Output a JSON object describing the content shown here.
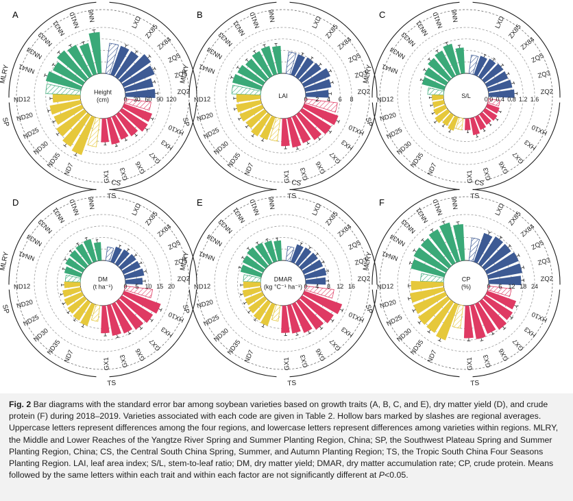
{
  "panels": [
    {
      "letter": "A",
      "center": [
        "Height",
        "(cm)"
      ],
      "ticks": [
        "0",
        "30",
        "60",
        "90",
        "120"
      ],
      "max": 120,
      "values": {
        "MLRY": [
          95,
          88,
          97,
          92,
          84,
          108
        ],
        "CS": [
          80,
          80,
          95,
          88,
          75,
          78
        ],
        "TS": [
          78,
          80,
          70,
          65,
          70,
          62
        ],
        "SP": [
          105,
          98,
          90,
          80,
          82,
          72
        ]
      },
      "avg": {
        "MLRY": 90,
        "CS": 80,
        "TS": 68,
        "SP": 75
      }
    },
    {
      "letter": "B",
      "center": [
        "LAI"
      ],
      "ticks": [
        "0",
        "2",
        "4",
        "6",
        "8"
      ],
      "max": 8,
      "values": {
        "MLRY": [
          5.2,
          5.0,
          4.6,
          4.9,
          5.1,
          4.8
        ],
        "CS": [
          3.8,
          4.0,
          4.2,
          5.0,
          4.6,
          4.0
        ],
        "TS": [
          6.3,
          6.0,
          5.5,
          5.0,
          5.2,
          4.8
        ],
        "SP": [
          4.2,
          4.4,
          4.0,
          4.3,
          4.4,
          4.2
        ]
      },
      "avg": {
        "MLRY": 5.0,
        "CS": 3.8,
        "TS": 5.6,
        "SP": 4.0
      }
    },
    {
      "letter": "C",
      "center": [
        "S/L"
      ],
      "ticks": [
        "0.0",
        "0.4",
        "0.8",
        "1.2",
        "1.6"
      ],
      "max": 1.6,
      "values": {
        "MLRY": [
          0.8,
          0.85,
          0.95,
          1.0,
          1.1,
          0.9
        ],
        "CS": [
          0.7,
          0.75,
          0.8,
          0.8,
          0.85,
          0.9
        ],
        "TS": [
          0.45,
          0.5,
          0.45,
          0.5,
          0.6,
          0.4
        ],
        "SP": [
          0.5,
          0.45,
          0.55,
          0.45,
          0.4,
          0.4
        ]
      },
      "avg": {
        "MLRY": 0.55,
        "CS": 0.65,
        "TS": 0.4,
        "SP": 0.4
      }
    },
    {
      "letter": "D",
      "center": [
        "DM",
        "(t ha⁻¹)"
      ],
      "ticks": [
        "0",
        "5",
        "10",
        "15",
        "20"
      ],
      "max": 20,
      "values": {
        "MLRY": [
          7.5,
          8.5,
          9.0,
          9.5,
          10.0,
          8.0
        ],
        "CS": [
          7.0,
          7.5,
          8.0,
          8.0,
          8.5,
          7.5
        ],
        "TS": [
          17,
          16,
          15,
          14,
          13.5,
          12
        ],
        "SP": [
          10,
          9.5,
          9.0,
          8.5,
          8.0,
          7.0
        ]
      },
      "avg": {
        "MLRY": 6.5,
        "CS": 6.0,
        "TS": 12.0,
        "SP": 7.0
      }
    },
    {
      "letter": "E",
      "center": [
        "DMAR",
        "(kg °C⁻¹ ha⁻¹)"
      ],
      "ticks": [
        "0",
        "4",
        "8",
        "12",
        "16"
      ],
      "max": 16,
      "values": {
        "MLRY": [
          7.5,
          8.0,
          8.5,
          8.0,
          7.5,
          7.0
        ],
        "CS": [
          6.5,
          6.8,
          7.0,
          7.2,
          7.5,
          7.0
        ],
        "TS": [
          14,
          13,
          12,
          11,
          10,
          9.5
        ],
        "SP": [
          8.0,
          7.5,
          7.0,
          6.5,
          6.5,
          6.0
        ]
      },
      "avg": {
        "MLRY": 6.0,
        "CS": 5.0,
        "TS": 10.0,
        "SP": 5.5
      }
    },
    {
      "letter": "F",
      "center": [
        "CP",
        "(%)"
      ],
      "ticks": [
        "0",
        "6",
        "12",
        "18",
        "24"
      ],
      "max": 24,
      "values": {
        "MLRY": [
          18,
          19,
          19,
          20,
          21,
          19
        ],
        "CS": [
          16,
          17,
          17,
          18,
          18,
          17
        ],
        "TS": [
          16,
          17,
          18,
          17,
          18,
          17
        ],
        "SP": [
          20,
          19,
          19,
          18,
          18,
          17
        ]
      },
      "avg": {
        "MLRY": 12,
        "CS": 12,
        "TS": 12,
        "SP": 12
      }
    }
  ],
  "regions": {
    "MLRY": {
      "label": "MLRY",
      "color": "#3aa978",
      "varieties": [
        "NN41",
        "NN34",
        "NN33",
        "NN31",
        "NN10",
        "NN6"
      ]
    },
    "CS": {
      "label": "CS",
      "color": "#3d5a94",
      "varieties": [
        "LXD",
        "ZX85",
        "ZX84",
        "ZQ5",
        "ZQ3",
        "ZQ2"
      ]
    },
    "TS": {
      "label": "TS",
      "color": "#df3a63",
      "varieties": [
        "HX10",
        "HX3",
        "GX7",
        "GX6",
        "GX3",
        "GX1"
      ]
    },
    "SP": {
      "label": "SP",
      "color": "#e6c83b",
      "varieties": [
        "ND7",
        "ND35",
        "ND30",
        "ND25",
        "ND20",
        "ND12"
      ]
    }
  },
  "caption": {
    "prefix": "Fig. 2",
    "text": "  Bar diagrams with the standard error bar among soybean varieties based on growth traits (A, B, C, and E), dry matter yield (D), and crude protein (F) during 2018–2019.  Varieties associated with each code are given in Table 2.  Hollow bars marked by slashes are regional averages.  Uppercase letters represent differences among the four regions, and lowercase letters represent differences among varieties within regions.  MLRY, the Middle and Lower Reaches of the Yangtze River Spring and Summer Planting Region, China; SP, the Southwest Plateau Spring and Summer Planting Region, China; CS, the Central South China Spring, Summer, and Autumn Planting Region; TS, the Tropic South China Four Seasons Planting Region.  LAI, leaf area index; S/L, stem-to-leaf ratio; DM, dry matter yield; DMAR, dry matter accumulation rate; CP, crude protein.  Means followed by the same letters within each trait and within each factor are not significantly different at ",
    "p_italic": "P",
    "suffix": "<0.05."
  },
  "chart_data": {
    "type": "bar",
    "layout": "circular grouped bar diagrams (6 panels)",
    "groups": [
      "MLRY",
      "CS",
      "TS",
      "SP"
    ],
    "note": "Values estimated from the radial scales; hollow hatched bars are regional averages."
  }
}
